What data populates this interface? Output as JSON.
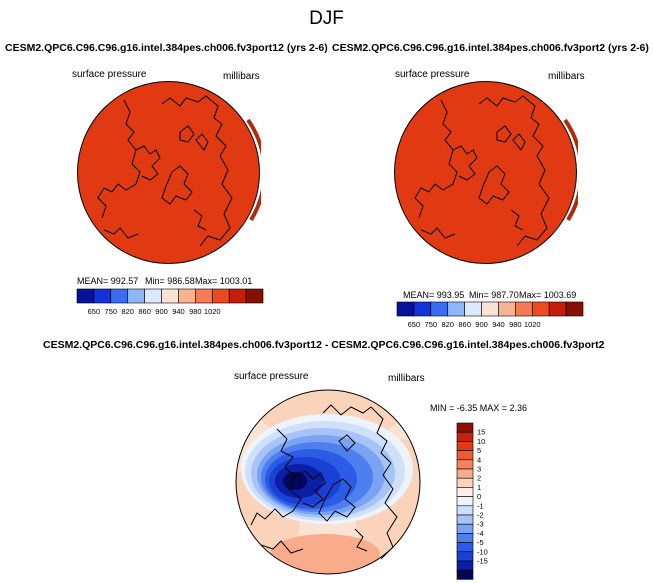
{
  "season": "DJF",
  "colors": {
    "abs_fill": "#e13a12",
    "land_line": "#000000",
    "abs_scale": [
      "#07119a",
      "#1531d8",
      "#3b6bf0",
      "#8eb6f8",
      "#dbe9fc",
      "#fbe3d3",
      "#f8b393",
      "#f37c55",
      "#ec4a21",
      "#c51c0b",
      "#861004"
    ],
    "diff_scale": [
      "#03075c",
      "#0a1ea8",
      "#1b40d6",
      "#2b5ce6",
      "#4f7fef",
      "#7aa3f4",
      "#a6c4f8",
      "#cfe0fb",
      "#eef4fd",
      "#fdf0e6",
      "#fbd3bb",
      "#f8ac8b",
      "#f3825d",
      "#ed5a34",
      "#e03a17",
      "#c0220a",
      "#8a1104"
    ]
  },
  "chart_data": [
    {
      "type": "heatmap",
      "title": "CESM2.QPC6.C96.C96.g16.intel.384pes.ch006.fv3port12 (yrs 2-6)",
      "left_label": "surface pressure",
      "right_label": "millibars",
      "stats": {
        "mean": "992.57",
        "min": "986.58",
        "max": "1003.01"
      },
      "stats_text": {
        "mean": "MEAN= 992.57",
        "min": "Min= 986.58",
        "max": "Max= 1003.01"
      },
      "colorbar_ticks": [
        "650",
        "750",
        "820",
        "860",
        "900",
        "940",
        "980",
        "1020"
      ]
    },
    {
      "type": "heatmap",
      "title": "CESM2.QPC6.C96.C96.g16.intel.384pes.ch006.fv3port2 (yrs 2-6)",
      "left_label": "surface pressure",
      "right_label": "millibars",
      "stats": {
        "mean": "993.95",
        "min": "987.70",
        "max": "1003.69"
      },
      "stats_text": {
        "mean": "MEAN= 993.95",
        "min": "Min= 987.70",
        "max": "Max= 1003.69"
      },
      "colorbar_ticks": [
        "650",
        "750",
        "820",
        "860",
        "900",
        "940",
        "980",
        "1020"
      ]
    },
    {
      "type": "heatmap",
      "title": "CESM2.QPC6.C96.C96.g16.intel.384pes.ch006.fv3port12 - CESM2.QPC6.C96.C96.g16.intel.384pes.ch006.fv3port2",
      "left_label": "surface pressure",
      "right_label": "millibars",
      "stats": {
        "min": "-6.35",
        "max": "2.36"
      },
      "stats_text": "MIN = -6.35 MAX = 2.36",
      "colorbar_ticks": [
        "15",
        "10",
        "5",
        "4",
        "3",
        "2",
        "1",
        "0",
        "-1",
        "-2",
        "-3",
        "-4",
        "-5",
        "-10",
        "-15"
      ]
    }
  ]
}
